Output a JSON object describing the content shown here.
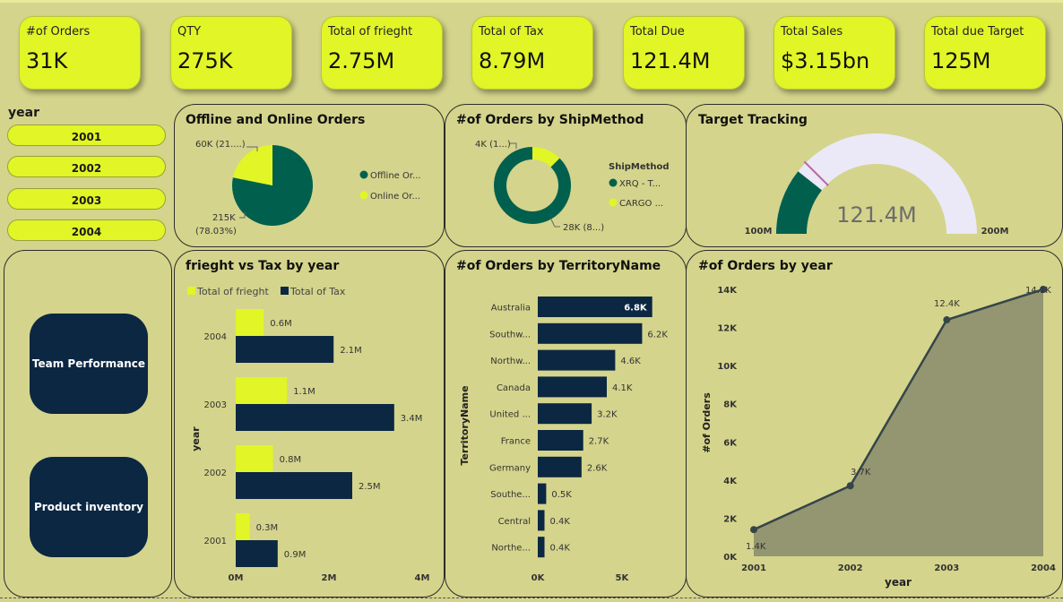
{
  "kpis": [
    {
      "label": "#of Orders",
      "value": "31K"
    },
    {
      "label": "QTY",
      "value": "275K"
    },
    {
      "label": "Total of frieght",
      "value": "2.75M"
    },
    {
      "label": "Total of Tax",
      "value": "8.79M"
    },
    {
      "label": "Total Due",
      "value": "121.4M"
    },
    {
      "label": "Total Sales",
      "value": "$3.15bn"
    },
    {
      "label": "Total due Target",
      "value": "125M"
    }
  ],
  "slicer": {
    "title": "year",
    "items": [
      "2001",
      "2002",
      "2003",
      "2004"
    ]
  },
  "nav": {
    "team_performance": "Team Performance",
    "product_inventory": "Product inventory"
  },
  "colors": {
    "accent": "#e2f526",
    "dark_green": "#00604d",
    "navy": "#0b2742",
    "background": "#d4d48c",
    "area": "#939670",
    "gauge_track": "#ebe9f7"
  },
  "chart_data": [
    {
      "type": "pie",
      "title": "Offline and Online Orders",
      "categories": [
        "Offline Or...",
        "Online Or..."
      ],
      "values": [
        215,
        60
      ],
      "data_labels": [
        "215K (78.03%)",
        "60K (21....)"
      ],
      "legend": "right",
      "colors": [
        "#00604d",
        "#e2f526"
      ]
    },
    {
      "type": "pie",
      "title": "#of Orders by ShipMethod",
      "legend_title": "ShipMethod",
      "categories": [
        "XRQ - T...",
        "CARGO ..."
      ],
      "values": [
        28,
        4
      ],
      "data_labels": [
        "28K (8...)",
        "4K (1...)"
      ],
      "legend": "right",
      "colors": [
        "#00604d",
        "#e2f526"
      ]
    },
    {
      "type": "gauge",
      "title": "Target Tracking",
      "value": 121.4,
      "value_label": "121.4M",
      "min": 100,
      "max": 200,
      "min_label": "100M",
      "max_label": "200M",
      "target": 125
    },
    {
      "type": "bar",
      "title": "frieght vs Tax by year",
      "orientation": "horizontal",
      "categories": [
        "2004",
        "2003",
        "2002",
        "2001"
      ],
      "series": [
        {
          "name": "Total of frieght",
          "values": [
            0.6,
            1.1,
            0.8,
            0.3
          ],
          "labels": [
            "0.6M",
            "1.1M",
            "0.8M",
            "0.3M"
          ],
          "color": "#e2f526"
        },
        {
          "name": "Total of Tax",
          "values": [
            2.1,
            3.4,
            2.5,
            0.9
          ],
          "labels": [
            "2.1M",
            "3.4M",
            "2.5M",
            "0.9M"
          ],
          "color": "#0b2742"
        }
      ],
      "ylabel": "year",
      "xlim": [
        0,
        4
      ],
      "xticks": [
        "0M",
        "2M",
        "4M"
      ],
      "legend": "top-left"
    },
    {
      "type": "bar",
      "title": "#of Orders by TerritoryName",
      "orientation": "horizontal",
      "categories": [
        "Australia",
        "Southw...",
        "Northw...",
        "Canada",
        "United ...",
        "France",
        "Germany",
        "Southe...",
        "Central",
        "Northe..."
      ],
      "values": [
        6.8,
        6.2,
        4.6,
        4.1,
        3.2,
        2.7,
        2.6,
        0.5,
        0.4,
        0.4
      ],
      "labels": [
        "6.8K",
        "6.2K",
        "4.6K",
        "4.1K",
        "3.2K",
        "2.7K",
        "2.6K",
        "0.5K",
        "0.4K",
        "0.4K"
      ],
      "ylabel": "TerritoryName",
      "xlim": [
        0,
        7.2
      ],
      "xticks": [
        "0K",
        "5K"
      ]
    },
    {
      "type": "area",
      "title": "#of Orders by year",
      "x": [
        "2001",
        "2002",
        "2003",
        "2004"
      ],
      "values": [
        1.4,
        3.7,
        12.4,
        14.1
      ],
      "labels": [
        "1.4K",
        "3.7K",
        "12.4K",
        "14.1K"
      ],
      "xlabel": "year",
      "ylabel": "#of Orders",
      "ylim": [
        0,
        14
      ],
      "yticks": [
        "0K",
        "2K",
        "4K",
        "6K",
        "8K",
        "10K",
        "12K",
        "14K"
      ]
    }
  ]
}
